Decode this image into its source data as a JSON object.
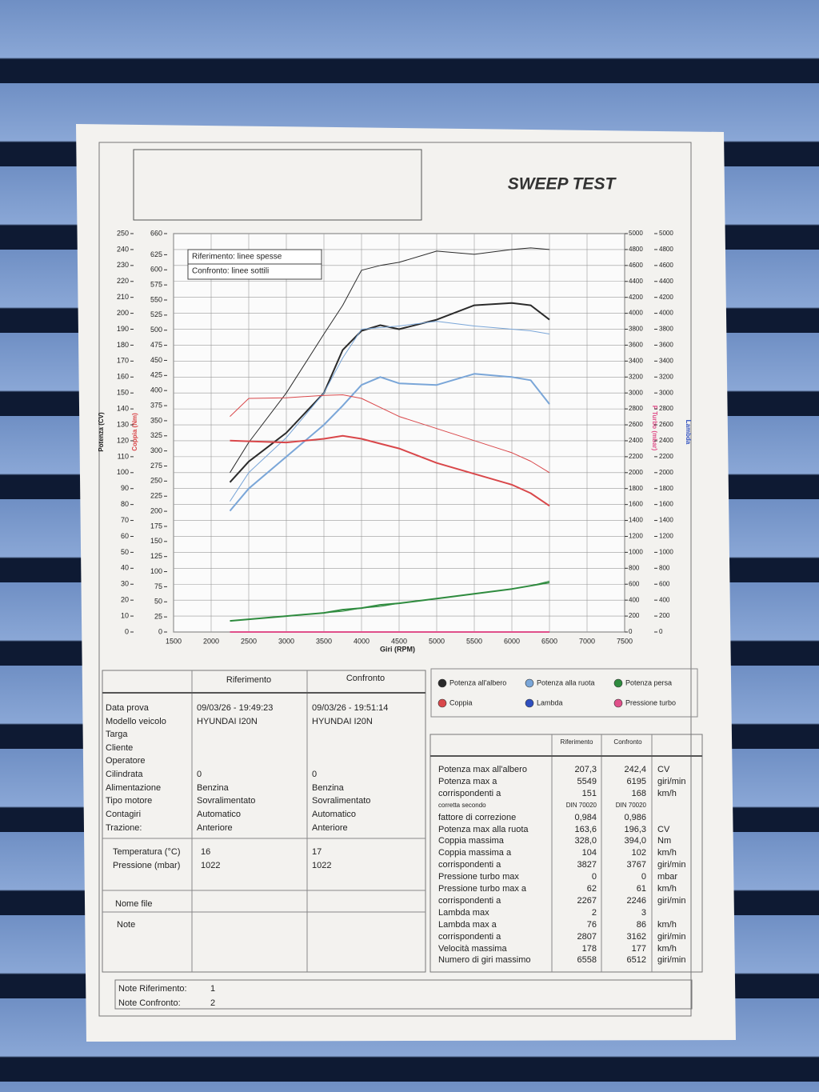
{
  "header": {
    "title": "SWEEP TEST"
  },
  "chart_data": {
    "type": "line",
    "x_label": "Giri (RPM)",
    "y_label": "Potenza (CV)",
    "y2_label": "Coppia (Nm)",
    "y3_label": "P Turbo (mbar)",
    "y4_label": "Lambda",
    "reference_note": "Riferimento: linee spesse",
    "comparison_note": "Confronto: linee sottili",
    "grid": true,
    "xlim": [
      1500,
      7500
    ],
    "xticks": [
      1500,
      2000,
      2500,
      3000,
      3500,
      4000,
      4500,
      5000,
      5500,
      6000,
      6500,
      7000,
      7500
    ],
    "ylim": [
      0,
      250
    ],
    "yticks": [
      0,
      10,
      20,
      30,
      40,
      50,
      60,
      70,
      80,
      90,
      100,
      110,
      120,
      130,
      140,
      150,
      160,
      170,
      180,
      190,
      200,
      210,
      220,
      230,
      240,
      250
    ],
    "y2lim": [
      0,
      660
    ],
    "y2ticks": [
      0,
      25,
      50,
      75,
      100,
      125,
      150,
      175,
      200,
      225,
      250,
      275,
      300,
      325,
      350,
      375,
      400,
      425,
      450,
      475,
      500,
      525,
      550,
      575,
      600,
      625,
      660
    ],
    "y3lim": [
      0,
      5000
    ],
    "y3ticks": [
      0,
      200,
      400,
      600,
      800,
      1000,
      1200,
      1400,
      1600,
      1800,
      2000,
      2200,
      2400,
      2600,
      2800,
      3000,
      3200,
      3400,
      3600,
      3800,
      4000,
      4200,
      4400,
      4600,
      4800,
      5000
    ],
    "y4lim": [
      0,
      5000
    ],
    "y4ticks": [
      0,
      200,
      400,
      600,
      800,
      1000,
      1200,
      1400,
      1600,
      1800,
      2000,
      2200,
      2400,
      2600,
      2800,
      3000,
      3200,
      3400,
      3600,
      3800,
      4000,
      4200,
      4400,
      4600,
      4800,
      5000
    ],
    "x": [
      2250,
      2500,
      3000,
      3500,
      3750,
      4000,
      4250,
      4500,
      5000,
      5500,
      6000,
      6250,
      6500
    ],
    "series": [
      {
        "name": "Potenza all'albero",
        "color": "#2a2a2a",
        "axis": "y",
        "reference": [
          94,
          107,
          125,
          150,
          177,
          189,
          192.5,
          190,
          196,
          205,
          206.5,
          205,
          196
        ],
        "comparison": [
          100,
          119,
          150,
          187,
          205,
          227,
          230,
          232,
          239,
          237,
          240,
          241,
          240
        ]
      },
      {
        "name": "Potenza alla ruota",
        "color": "#7aa6d8",
        "axis": "y",
        "reference": [
          76,
          90,
          110,
          130,
          142,
          155,
          160,
          156,
          155,
          162,
          160,
          158,
          143
        ],
        "comparison": [
          82,
          100,
          122,
          150,
          172,
          190,
          191,
          192,
          195,
          192,
          190,
          189,
          187
        ]
      },
      {
        "name": "Potenza persa",
        "color": "#2e8b3e",
        "axis": "y",
        "reference": [
          7,
          8,
          10,
          12,
          14,
          15,
          17,
          18,
          21,
          24,
          27,
          29,
          31
        ],
        "comparison": [
          7,
          8,
          10,
          12,
          13,
          15,
          16,
          18,
          21,
          24,
          27,
          29,
          32
        ]
      },
      {
        "name": "Coppia",
        "color": "#d9474a",
        "axis": "y2",
        "reference": [
          317,
          316,
          314,
          320,
          325,
          320,
          312,
          304,
          280,
          262,
          244,
          230,
          209
        ],
        "comparison": [
          357,
          387,
          388,
          392,
          393,
          387,
          372,
          357,
          337,
          317,
          297,
          283,
          264
        ]
      },
      {
        "name": "Lambda",
        "color": "#2f4fbf",
        "axis": "y4"
      },
      {
        "name": "Pressione turbo",
        "color": "#e0508a",
        "axis": "y3",
        "reference": [
          0,
          0,
          0,
          0,
          0,
          0,
          0,
          0,
          0,
          0,
          0,
          0,
          0
        ],
        "comparison": [
          0,
          0,
          0,
          0,
          0,
          0,
          0,
          0,
          0,
          0,
          0,
          0,
          0
        ]
      }
    ]
  },
  "info_table": {
    "columns": [
      "Riferimento",
      "Confronto"
    ],
    "rows": [
      {
        "label": "Data prova",
        "values": [
          "09/03/26 - 19:49:23",
          "09/03/26 - 19:51:14"
        ]
      },
      {
        "label": "Modello veicolo",
        "values": [
          "HYUNDAI I20N",
          "HYUNDAI I20N"
        ]
      },
      {
        "label": "Targa"
      },
      {
        "label": "Cliente"
      },
      {
        "label": "Operatore"
      },
      {
        "label": "Cilindrata",
        "values": [
          "0",
          "0"
        ]
      },
      {
        "label": "Alimentazione",
        "values": [
          "Benzina",
          "Benzina"
        ]
      },
      {
        "label": "Tipo motore",
        "values": [
          "Sovralimentato",
          "Sovralimentato"
        ]
      },
      {
        "label": "Contagiri",
        "values": [
          "Automatico",
          "Automatico"
        ]
      },
      {
        "label": "Trazione:",
        "values": [
          "Anteriore",
          "Anteriore"
        ]
      }
    ],
    "conditions": [
      {
        "label": "Temperatura (°C)",
        "values": [
          "16",
          "17"
        ]
      },
      {
        "label": "Pressione (mbar)",
        "values": [
          "1022",
          "1022"
        ]
      }
    ],
    "file_label": "Nome file",
    "note_label": "Note"
  },
  "results_table": {
    "columns": [
      "Riferimento",
      "Confronto"
    ],
    "rows": [
      {
        "label": "Potenza max all'albero",
        "values": [
          "207,3",
          "242,4"
        ],
        "unit": "CV"
      },
      {
        "label": "Potenza max a",
        "values": [
          "5549",
          "6195"
        ],
        "unit": "giri/min"
      },
      {
        "label": "corrispondenti a",
        "values": [
          "151",
          "168"
        ],
        "unit": "km/h"
      },
      {
        "label": "corretta secondo",
        "values": [
          "DIN 70020",
          "DIN 70020"
        ]
      },
      {
        "label": "fattore di correzione",
        "values": [
          "0,984",
          "0,986"
        ]
      },
      {
        "label": "Potenza max alla ruota",
        "values": [
          "163,6",
          "196,3"
        ],
        "unit": "CV"
      },
      {
        "label": "Coppia massima",
        "values": [
          "328,0",
          "394,0"
        ],
        "unit": "Nm"
      },
      {
        "label": "Coppia massima a",
        "values": [
          "104",
          "102"
        ],
        "unit": "km/h"
      },
      {
        "label": "corrispondenti a",
        "values": [
          "3827",
          "3767"
        ],
        "unit": "giri/min"
      },
      {
        "label": "Pressione turbo max",
        "values": [
          "0",
          "0"
        ],
        "unit": "mbar"
      },
      {
        "label": "Pressione turbo max a",
        "values": [
          "62",
          "61"
        ],
        "unit": "km/h"
      },
      {
        "label": "corrispondenti a",
        "values": [
          "2267",
          "2246"
        ],
        "unit": "giri/min"
      },
      {
        "label": "Lambda max",
        "values": [
          "2",
          "3"
        ]
      },
      {
        "label": "Lambda max a",
        "values": [
          "76",
          "86"
        ],
        "unit": "km/h"
      },
      {
        "label": "corrispondenti a",
        "values": [
          "2807",
          "3162"
        ],
        "unit": "giri/min"
      },
      {
        "label": "Velocità massima",
        "values": [
          "178",
          "177"
        ],
        "unit": "km/h"
      },
      {
        "label": "Numero di giri massimo",
        "values": [
          "6558",
          "6512"
        ],
        "unit": "giri/min"
      }
    ]
  },
  "notes": [
    {
      "label": "Note Riferimento:",
      "value": "1"
    },
    {
      "label": "Note Confronto:",
      "value": "2"
    }
  ]
}
